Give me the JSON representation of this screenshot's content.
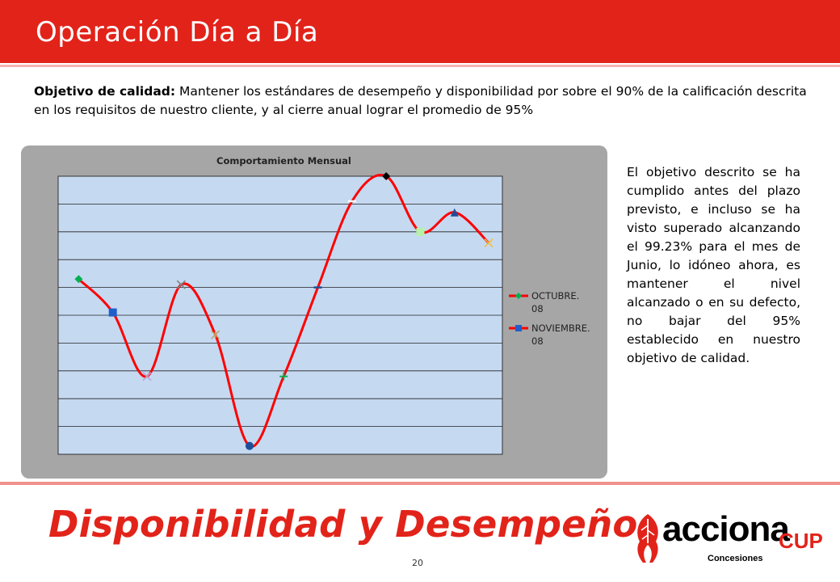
{
  "header": {
    "title": "Operación Día a Día"
  },
  "objective": {
    "label": "Objetivo de calidad:",
    "text": " Mantener los estándares de desempeño y disponibilidad por sobre el 90% de la calificación descrita en los requisitos de nuestro cliente, y al cierre anual lograr el promedio de 95%"
  },
  "side_text": "El objetivo descrito se ha cumplido antes del plazo previsto, e incluso se ha visto superado alcanzando el 99.23% para el mes de Junio, lo idóneo ahora, es mantener el nivel alcanzado o en su defecto, no bajar del 95% establecido en nuestro objetivo de calidad.",
  "footer": {
    "title": "Disponibilidad y Desempeño",
    "page_number": "20"
  },
  "logo": {
    "name": "acciona",
    "suffix": "CUP",
    "subtitle": "Concesiones"
  },
  "colors": {
    "accent": "#e2231a",
    "plot_bg": "#c5d9f1",
    "panel_bg": "#a6a6a6"
  },
  "chart_data": {
    "type": "line",
    "title": "Comportamiento Mensual",
    "xlabel": "",
    "ylabel": "",
    "ylim": [
      0,
      10
    ],
    "grid": true,
    "legend_placement": "right",
    "series_line_color": "#ff0000",
    "points": [
      {
        "label": "OCTUBRE. 08",
        "value": 6.3,
        "marker": "diamond",
        "color": "#00b050"
      },
      {
        "label": "NOVIEMBRE. 08",
        "value": 5.1,
        "marker": "square",
        "color": "#1f5fcc"
      },
      {
        "value": 2.8,
        "marker": "x",
        "color": "#b4a7d6"
      },
      {
        "value": 6.1,
        "marker": "x",
        "color": "#7f7f7f"
      },
      {
        "value": 4.3,
        "marker": "star",
        "color": "#c0a060"
      },
      {
        "value": 0.3,
        "marker": "circle",
        "color": "#1f4e99"
      },
      {
        "value": 2.8,
        "marker": "plus",
        "color": "#00b050"
      },
      {
        "value": 6.0,
        "marker": "dash",
        "color": "#1f4e99"
      },
      {
        "value": 9.1,
        "marker": "dash",
        "color": "#ffffff"
      },
      {
        "value": 10.0,
        "marker": "diamond",
        "color": "#000000"
      },
      {
        "value": 8.0,
        "marker": "square",
        "color": "#b6f2a6"
      },
      {
        "value": 8.7,
        "marker": "triangle",
        "color": "#1f4e99"
      },
      {
        "value": 7.6,
        "marker": "x",
        "color": "#f0c040"
      }
    ],
    "legend": [
      {
        "label": "OCTUBRE. 08",
        "marker": "diamond",
        "color": "#00b050"
      },
      {
        "label": "NOVIEMBRE. 08",
        "marker": "square",
        "color": "#1f5fcc"
      }
    ]
  }
}
